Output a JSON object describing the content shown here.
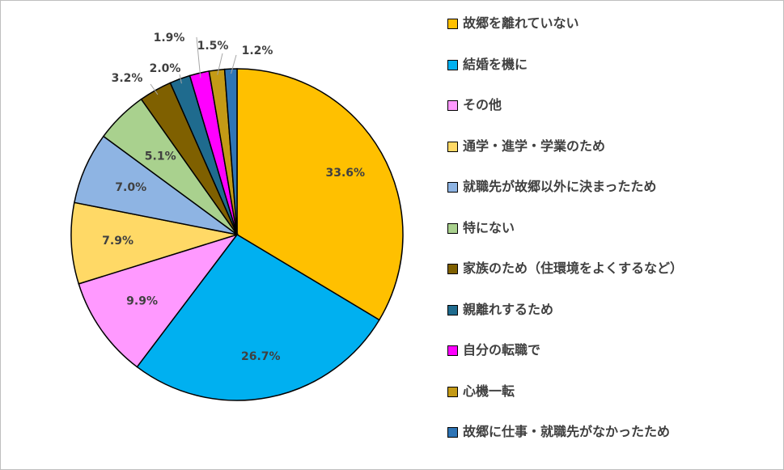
{
  "chart_data": {
    "type": "pie",
    "title": "",
    "legend_position": "right",
    "slices": [
      {
        "name": "故郷を離れていない",
        "value": 33.6,
        "label": "33.6%",
        "color": "#FFC000"
      },
      {
        "name": "結婚を機に",
        "value": 26.7,
        "label": "26.7%",
        "color": "#00B0F0"
      },
      {
        "name": "その他",
        "value": 9.9,
        "label": "9.9%",
        "color": "#FF99FF"
      },
      {
        "name": "通学・進学・学業のため",
        "value": 7.9,
        "label": "7.9%",
        "color": "#FFD966"
      },
      {
        "name": "就職先が故郷以外に決まったため",
        "value": 7.0,
        "label": "7.0%",
        "color": "#8EB4E3"
      },
      {
        "name": "特にない",
        "value": 5.1,
        "label": "5.1%",
        "color": "#A9D18E"
      },
      {
        "name": "家族のため（住環境をよくするなど）",
        "value": 3.2,
        "label": "3.2%",
        "color": "#7F6000"
      },
      {
        "name": "親離れするため",
        "value": 2.0,
        "label": "2.0%",
        "color": "#1F6B8E"
      },
      {
        "name": "自分の転職で",
        "value": 1.9,
        "label": "1.9%",
        "color": "#FF00FF"
      },
      {
        "name": "心機一転",
        "value": 1.5,
        "label": "1.5%",
        "color": "#C49A16"
      },
      {
        "name": "故郷に仕事・就職先がなかったため",
        "value": 1.2,
        "label": "1.2%",
        "color": "#2E75B6"
      }
    ]
  }
}
